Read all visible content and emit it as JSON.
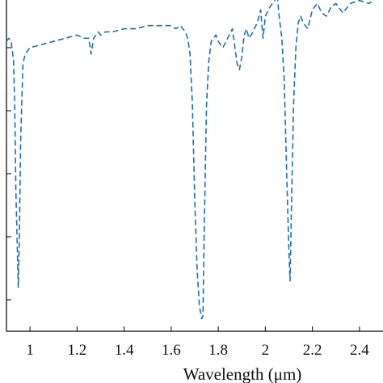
{
  "chart_data": {
    "type": "line",
    "title": "",
    "xlabel": "Wavelength (μm)",
    "ylabel": "",
    "xlim": [
      0.9,
      2.5
    ],
    "ylim": [
      0,
      1
    ],
    "x_ticks": [
      1,
      1.2,
      1.4,
      1.6,
      1.8,
      2,
      2.2,
      2.4
    ],
    "x_tick_labels": [
      "1",
      "1.2",
      "1.4",
      "1.6",
      "1.8",
      "2",
      "2.2",
      "2.4"
    ],
    "y_ticks": [
      0.1,
      0.3,
      0.5,
      0.7,
      0.9
    ],
    "y_tick_labels": [],
    "grid": false,
    "legend": "none",
    "series": [
      {
        "color": "#1f6fa8",
        "style": "dashed",
        "x": [
          0.9,
          0.91,
          0.92,
          0.93,
          0.935,
          0.94,
          0.945,
          0.95,
          0.955,
          0.96,
          0.97,
          0.98,
          0.99,
          1.0,
          1.05,
          1.1,
          1.15,
          1.2,
          1.23,
          1.25,
          1.26,
          1.27,
          1.29,
          1.3,
          1.32,
          1.35,
          1.4,
          1.45,
          1.5,
          1.55,
          1.6,
          1.62,
          1.64,
          1.66,
          1.67,
          1.68,
          1.69,
          1.7,
          1.71,
          1.72,
          1.73,
          1.735,
          1.74,
          1.75,
          1.76,
          1.77,
          1.79,
          1.8,
          1.82,
          1.84,
          1.86,
          1.88,
          1.89,
          1.9,
          1.91,
          1.92,
          1.93,
          1.94,
          1.96,
          1.97,
          1.98,
          1.99,
          2.0,
          2.02,
          2.04,
          2.05,
          2.06,
          2.07,
          2.08,
          2.09,
          2.1,
          2.105,
          2.11,
          2.12,
          2.13,
          2.14,
          2.15,
          2.16,
          2.18,
          2.2,
          2.22,
          2.24,
          2.26,
          2.28,
          2.3,
          2.33,
          2.36,
          2.4,
          2.44,
          2.48,
          2.5
        ],
        "y": [
          0.92,
          0.93,
          0.92,
          0.86,
          0.72,
          0.45,
          0.3,
          0.14,
          0.3,
          0.6,
          0.85,
          0.88,
          0.89,
          0.9,
          0.91,
          0.92,
          0.93,
          0.94,
          0.93,
          0.93,
          0.88,
          0.93,
          0.95,
          0.94,
          0.95,
          0.95,
          0.96,
          0.96,
          0.97,
          0.97,
          0.97,
          0.96,
          0.97,
          0.95,
          0.93,
          0.88,
          0.72,
          0.42,
          0.2,
          0.08,
          0.04,
          0.05,
          0.3,
          0.72,
          0.86,
          0.92,
          0.94,
          0.92,
          0.9,
          0.93,
          0.96,
          0.85,
          0.83,
          0.87,
          0.94,
          0.96,
          0.93,
          0.94,
          0.97,
          0.99,
          1.02,
          0.93,
          1.0,
          1.03,
          1.05,
          1.07,
          0.99,
          0.93,
          0.8,
          0.52,
          0.26,
          0.16,
          0.35,
          0.72,
          0.9,
          0.98,
          1.0,
          0.98,
          0.96,
          1.02,
          1.04,
          1.01,
          1.0,
          1.03,
          1.04,
          1.01,
          1.04,
          1.05,
          1.04,
          1.06,
          1.06
        ]
      }
    ]
  }
}
